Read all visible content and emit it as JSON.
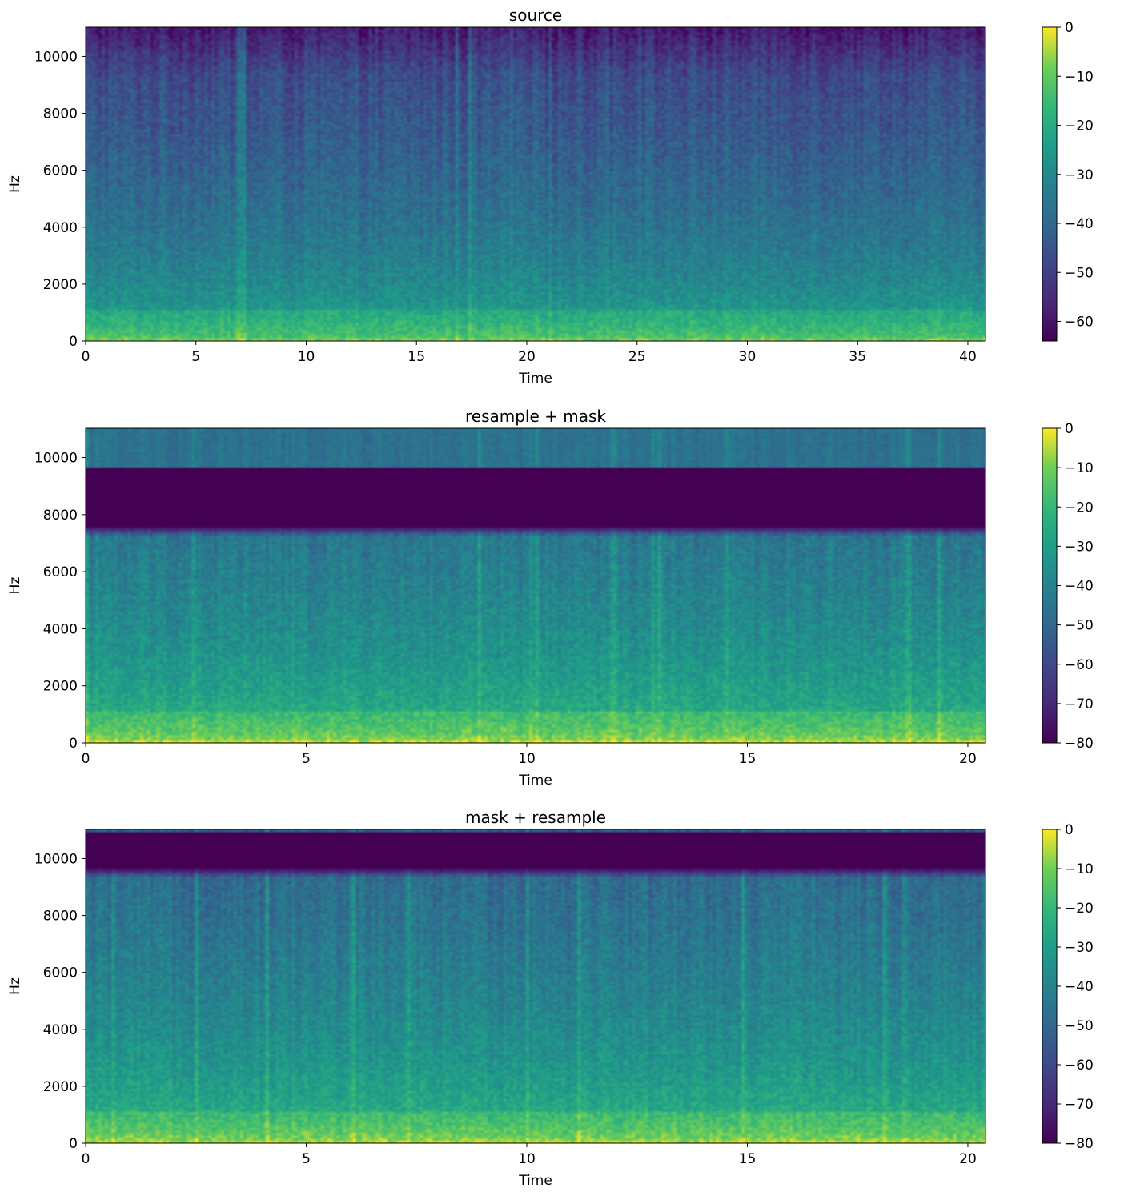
{
  "chart_data": [
    {
      "type": "heatmap",
      "title": "source",
      "xlabel": "Time",
      "ylabel": "Hz",
      "xlim": [
        0,
        40.8
      ],
      "ylim": [
        0,
        11025
      ],
      "xticks": [
        0,
        5,
        10,
        15,
        20,
        25,
        30,
        35,
        40
      ],
      "yticks": [
        0,
        2000,
        4000,
        6000,
        8000,
        10000
      ],
      "colorbar": {
        "range": [
          -64,
          0
        ],
        "ticks": [
          0,
          -10,
          -20,
          -30,
          -40,
          -50,
          -60
        ],
        "colormap": "viridis"
      },
      "mask_band_hz": null
    },
    {
      "type": "heatmap",
      "title": "resample + mask",
      "xlabel": "Time",
      "ylabel": "Hz",
      "xlim": [
        0,
        20.4
      ],
      "ylim": [
        0,
        11025
      ],
      "xticks": [
        0,
        5,
        10,
        15,
        20
      ],
      "yticks": [
        0,
        2000,
        4000,
        6000,
        8000,
        10000
      ],
      "colorbar": {
        "range": [
          -80,
          0
        ],
        "ticks": [
          0,
          -10,
          -20,
          -30,
          -40,
          -50,
          -60,
          -70,
          -80
        ],
        "colormap": "viridis"
      },
      "mask_band_hz": [
        7600,
        9700
      ]
    },
    {
      "type": "heatmap",
      "title": "mask + resample",
      "xlabel": "Time",
      "ylabel": "Hz",
      "xlim": [
        0,
        20.4
      ],
      "ylim": [
        0,
        11025
      ],
      "xticks": [
        0,
        5,
        10,
        15,
        20
      ],
      "yticks": [
        0,
        2000,
        4000,
        6000,
        8000,
        10000
      ],
      "colorbar": {
        "range": [
          -80,
          0
        ],
        "ticks": [
          0,
          -10,
          -20,
          -30,
          -40,
          -50,
          -60,
          -70,
          -80
        ],
        "colormap": "viridis"
      },
      "mask_band_hz": [
        9700,
        11025
      ]
    }
  ]
}
